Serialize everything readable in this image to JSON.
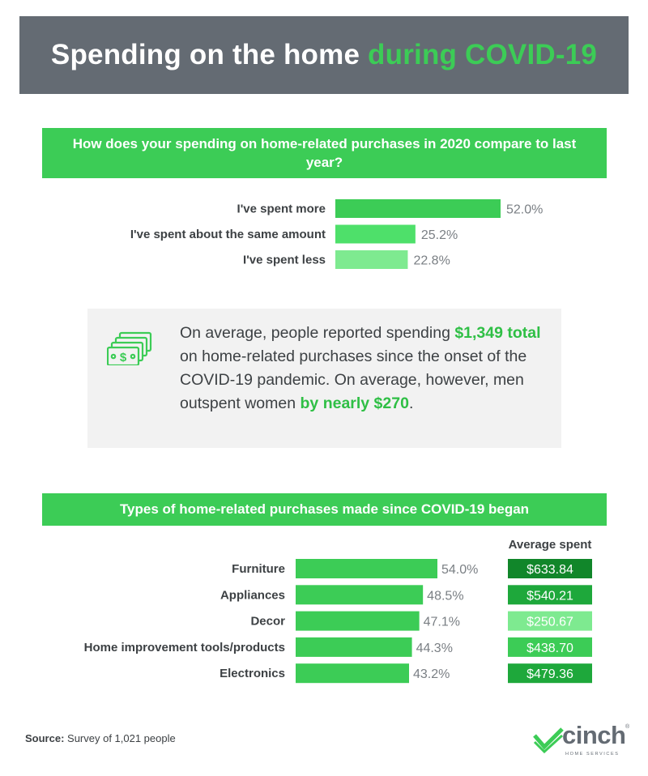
{
  "header": {
    "title_main": "Spending on the home ",
    "title_accent": "during COVID-19"
  },
  "section1": {
    "question": "How does your spending on home-related purchases in 2020 compare to last year?"
  },
  "callout": {
    "icon": "money-stack-icon",
    "text_1": "On average, people reported spending ",
    "highlight_1": "$1,349 total",
    "text_2": " on home-related purchases since the onset of the COVID-19 pandemic. On average, however, men outspent women ",
    "highlight_2": "by nearly $270",
    "text_3": "."
  },
  "section2": {
    "title": "Types of home-related purchases made since COVID-19 began"
  },
  "source": {
    "label": "Source:",
    "text": " Survey of 1,021 people"
  },
  "logo": {
    "word": "cinch",
    "reg": "®",
    "sub": "HOME SERVICES"
  },
  "colors": {
    "header_bg": "#646b73",
    "accent_green": "#3ccc56",
    "bar_green": "#3ccc56",
    "bar_mid": "#4ee06a",
    "bar_light": "#7eea90",
    "avg_dark": "#11862a",
    "avg_mid": "#1ea83b",
    "avg_light": "#7eea90",
    "avg_bright": "#3ccc56",
    "callout_bg": "#f2f2f2"
  },
  "chart_data": [
    {
      "type": "bar",
      "orientation": "horizontal",
      "title": "How does your spending on home-related purchases in 2020 compare to last year?",
      "categories": [
        "I've spent more",
        "I've spent about the same amount",
        "I've spent less"
      ],
      "values": [
        52.0,
        25.2,
        22.8
      ],
      "value_labels": [
        "52.0%",
        "25.2%",
        "22.8%"
      ],
      "unit": "%",
      "bar_colors": [
        "#3ccc56",
        "#4ee06a",
        "#7eea90"
      ]
    },
    {
      "type": "bar",
      "orientation": "horizontal",
      "title": "Types of home-related purchases made since COVID-19 began",
      "categories": [
        "Furniture",
        "Appliances",
        "Decor",
        "Home improvement tools/products",
        "Electronics"
      ],
      "values": [
        54.0,
        48.5,
        47.1,
        44.3,
        43.2
      ],
      "value_labels": [
        "54.0%",
        "48.5%",
        "47.1%",
        "44.3%",
        "43.2%"
      ],
      "unit": "%",
      "bar_color": "#3ccc56",
      "average_spent": {
        "header": "Average spent",
        "values": [
          633.84,
          540.21,
          250.67,
          438.7,
          479.36
        ],
        "labels": [
          "$633.84",
          "$540.21",
          "$250.67",
          "$438.70",
          "$479.36"
        ],
        "colors": [
          "#11862a",
          "#1ea83b",
          "#7eea90",
          "#3ccc56",
          "#1ea83b"
        ]
      }
    }
  ]
}
